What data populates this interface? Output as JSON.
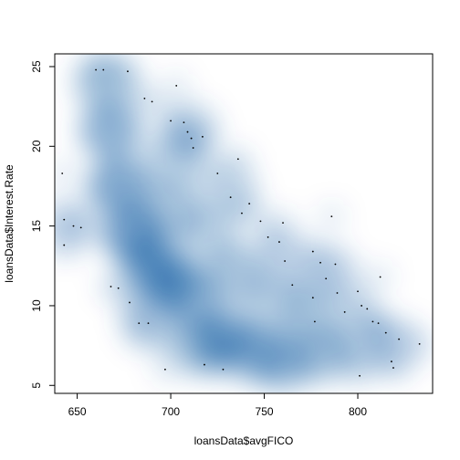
{
  "chart_data": {
    "type": "scatter",
    "subtype": "smoothScatter density",
    "title": "",
    "xlabel": "loansData$avgFICO",
    "ylabel": "loansData$Interest.Rate",
    "xlim": [
      638,
      840
    ],
    "ylim": [
      4.5,
      25.8
    ],
    "xticks": [
      650,
      700,
      750,
      800
    ],
    "yticks": [
      5,
      10,
      15,
      20,
      25
    ],
    "colors": {
      "density": "#08519c",
      "points": "#000000",
      "frame": "#000000"
    },
    "grid": false,
    "legend": "none",
    "density_blobs": [
      {
        "x": 680,
        "y": 14.5,
        "w": 1.0
      },
      {
        "x": 672,
        "y": 17.5,
        "w": 0.9
      },
      {
        "x": 668,
        "y": 21.0,
        "w": 0.8
      },
      {
        "x": 665,
        "y": 24.0,
        "w": 0.6
      },
      {
        "x": 690,
        "y": 12.5,
        "w": 0.9
      },
      {
        "x": 700,
        "y": 11.5,
        "w": 0.8
      },
      {
        "x": 712,
        "y": 10.5,
        "w": 0.7
      },
      {
        "x": 728,
        "y": 8.0,
        "w": 0.9
      },
      {
        "x": 745,
        "y": 7.0,
        "w": 0.7
      },
      {
        "x": 760,
        "y": 6.5,
        "w": 0.7
      },
      {
        "x": 780,
        "y": 7.0,
        "w": 0.6
      },
      {
        "x": 800,
        "y": 7.5,
        "w": 0.5
      },
      {
        "x": 700,
        "y": 16.0,
        "w": 0.6
      },
      {
        "x": 700,
        "y": 19.0,
        "w": 0.5
      },
      {
        "x": 720,
        "y": 14.5,
        "w": 0.5
      },
      {
        "x": 735,
        "y": 12.0,
        "w": 0.6
      },
      {
        "x": 755,
        "y": 10.0,
        "w": 0.5
      },
      {
        "x": 775,
        "y": 9.5,
        "w": 0.4
      },
      {
        "x": 645,
        "y": 15.0,
        "w": 0.3
      },
      {
        "x": 690,
        "y": 9.0,
        "w": 0.5
      },
      {
        "x": 715,
        "y": 7.5,
        "w": 0.6
      },
      {
        "x": 760,
        "y": 13.0,
        "w": 0.3
      },
      {
        "x": 785,
        "y": 12.0,
        "w": 0.3
      },
      {
        "x": 820,
        "y": 7.5,
        "w": 0.3
      },
      {
        "x": 710,
        "y": 21.0,
        "w": 0.35
      },
      {
        "x": 730,
        "y": 17.5,
        "w": 0.35
      }
    ],
    "outlier_points": [
      {
        "x": 642,
        "y": 18.3
      },
      {
        "x": 643,
        "y": 15.4
      },
      {
        "x": 643,
        "y": 13.8
      },
      {
        "x": 648,
        "y": 15.0
      },
      {
        "x": 652,
        "y": 14.9
      },
      {
        "x": 660,
        "y": 24.8
      },
      {
        "x": 664,
        "y": 24.8
      },
      {
        "x": 668,
        "y": 11.2
      },
      {
        "x": 672,
        "y": 11.1
      },
      {
        "x": 677,
        "y": 24.7
      },
      {
        "x": 678,
        "y": 10.2
      },
      {
        "x": 683,
        "y": 8.9
      },
      {
        "x": 686,
        "y": 23.0
      },
      {
        "x": 688,
        "y": 8.9
      },
      {
        "x": 690,
        "y": 22.8
      },
      {
        "x": 697,
        "y": 6.0
      },
      {
        "x": 700,
        "y": 21.6
      },
      {
        "x": 703,
        "y": 23.8
      },
      {
        "x": 707,
        "y": 21.5
      },
      {
        "x": 709,
        "y": 20.9
      },
      {
        "x": 711,
        "y": 20.5
      },
      {
        "x": 712,
        "y": 19.9
      },
      {
        "x": 717,
        "y": 20.6
      },
      {
        "x": 718,
        "y": 6.3
      },
      {
        "x": 725,
        "y": 18.3
      },
      {
        "x": 728,
        "y": 6.0
      },
      {
        "x": 732,
        "y": 16.8
      },
      {
        "x": 736,
        "y": 19.2
      },
      {
        "x": 738,
        "y": 15.8
      },
      {
        "x": 742,
        "y": 16.4
      },
      {
        "x": 748,
        "y": 15.3
      },
      {
        "x": 752,
        "y": 14.3
      },
      {
        "x": 758,
        "y": 14.0
      },
      {
        "x": 760,
        "y": 15.2
      },
      {
        "x": 761,
        "y": 12.8
      },
      {
        "x": 765,
        "y": 11.3
      },
      {
        "x": 776,
        "y": 13.4
      },
      {
        "x": 776,
        "y": 10.5
      },
      {
        "x": 777,
        "y": 9.0
      },
      {
        "x": 780,
        "y": 12.7
      },
      {
        "x": 783,
        "y": 11.7
      },
      {
        "x": 786,
        "y": 15.6
      },
      {
        "x": 788,
        "y": 12.6
      },
      {
        "x": 789,
        "y": 10.8
      },
      {
        "x": 793,
        "y": 9.6
      },
      {
        "x": 800,
        "y": 10.9
      },
      {
        "x": 802,
        "y": 10.0
      },
      {
        "x": 805,
        "y": 9.8
      },
      {
        "x": 808,
        "y": 9.0
      },
      {
        "x": 811,
        "y": 8.9
      },
      {
        "x": 812,
        "y": 11.8
      },
      {
        "x": 815,
        "y": 8.3
      },
      {
        "x": 818,
        "y": 6.5
      },
      {
        "x": 819,
        "y": 6.1
      },
      {
        "x": 822,
        "y": 7.9
      },
      {
        "x": 833,
        "y": 7.6
      },
      {
        "x": 801,
        "y": 5.6
      }
    ]
  }
}
